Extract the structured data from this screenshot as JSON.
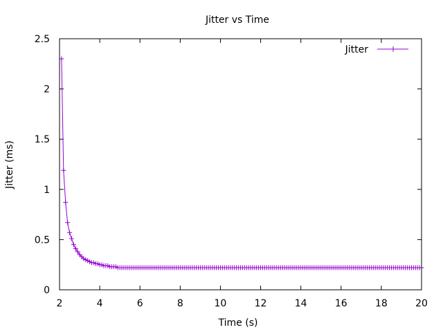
{
  "chart_data": {
    "type": "line",
    "title": "Jitter vs Time",
    "xlabel": "Time (s)",
    "ylabel": "Jitter (ms)",
    "xlim": [
      2,
      20
    ],
    "ylim": [
      0,
      2.5
    ],
    "xticks": [
      2,
      4,
      6,
      8,
      10,
      12,
      14,
      16,
      18,
      20
    ],
    "yticks": [
      0,
      0.5,
      1,
      1.5,
      2,
      2.5
    ],
    "xtick_labels": [
      "2",
      "4",
      "6",
      "8",
      "10",
      "12",
      "14",
      "16",
      "18",
      "20"
    ],
    "ytick_labels": [
      "0",
      "0.5",
      "1",
      "1.5",
      "2",
      "2.5"
    ],
    "grid": false,
    "legend_position": "top-right",
    "series": [
      {
        "name": "Jitter",
        "color": "#9400d3",
        "marker": "plus",
        "x": [
          2.1,
          2.2,
          2.3,
          2.4,
          2.5,
          2.6,
          2.7,
          2.8,
          2.9,
          3.0,
          3.1,
          3.2,
          3.3,
          3.4,
          3.5,
          3.6,
          3.7,
          3.8,
          3.9,
          4.0,
          4.1,
          4.2,
          4.3,
          4.4,
          4.5,
          4.6,
          4.7,
          4.8,
          4.9,
          5.0,
          5.1,
          5.2,
          5.3,
          5.4,
          5.5,
          5.6,
          5.7,
          5.8,
          5.9,
          6.0,
          6.1,
          6.2,
          6.3,
          6.4,
          6.5,
          6.6,
          6.7,
          6.8,
          6.9,
          7.0,
          7.1,
          7.2,
          7.3,
          7.4,
          7.5,
          7.6,
          7.7,
          7.8,
          7.9,
          8.0,
          8.1,
          8.2,
          8.3,
          8.4,
          8.5,
          8.6,
          8.7,
          8.8,
          8.9,
          9.0,
          9.1,
          9.2,
          9.3,
          9.4,
          9.5,
          9.6,
          9.7,
          9.8,
          9.9,
          10.0,
          10.1,
          10.2,
          10.3,
          10.4,
          10.5,
          10.6,
          10.7,
          10.8,
          10.9,
          11.0,
          11.1,
          11.2,
          11.3,
          11.4,
          11.5,
          11.6,
          11.7,
          11.8,
          11.9,
          12.0,
          12.1,
          12.2,
          12.3,
          12.4,
          12.5,
          12.6,
          12.7,
          12.8,
          12.9,
          13.0,
          13.1,
          13.2,
          13.3,
          13.4,
          13.5,
          13.6,
          13.7,
          13.8,
          13.9,
          14.0,
          14.1,
          14.2,
          14.3,
          14.4,
          14.5,
          14.6,
          14.7,
          14.8,
          14.9,
          15.0,
          15.1,
          15.2,
          15.3,
          15.4,
          15.5,
          15.6,
          15.7,
          15.8,
          15.9,
          16.0,
          16.1,
          16.2,
          16.3,
          16.4,
          16.5,
          16.6,
          16.7,
          16.8,
          16.9,
          17.0,
          17.1,
          17.2,
          17.3,
          17.4,
          17.5,
          17.6,
          17.7,
          17.8,
          17.9,
          18.0,
          18.1,
          18.2,
          18.3,
          18.4,
          18.5,
          18.6,
          18.7,
          18.8,
          18.9,
          19.0,
          19.1,
          19.2,
          19.3,
          19.4,
          19.5,
          19.6,
          19.7,
          19.8,
          19.9,
          20.0
        ],
        "y": [
          2.3,
          1.19,
          0.87,
          0.67,
          0.57,
          0.51,
          0.45,
          0.41,
          0.38,
          0.35,
          0.33,
          0.31,
          0.3,
          0.29,
          0.28,
          0.27,
          0.27,
          0.26,
          0.26,
          0.25,
          0.25,
          0.24,
          0.24,
          0.24,
          0.23,
          0.23,
          0.23,
          0.23,
          0.22,
          0.22,
          0.22,
          0.22,
          0.22,
          0.22,
          0.22,
          0.22,
          0.22,
          0.22,
          0.22,
          0.22,
          0.22,
          0.22,
          0.22,
          0.22,
          0.22,
          0.22,
          0.22,
          0.22,
          0.22,
          0.22,
          0.22,
          0.22,
          0.22,
          0.22,
          0.22,
          0.22,
          0.22,
          0.22,
          0.22,
          0.22,
          0.22,
          0.22,
          0.22,
          0.22,
          0.22,
          0.22,
          0.22,
          0.22,
          0.22,
          0.22,
          0.22,
          0.22,
          0.22,
          0.22,
          0.22,
          0.22,
          0.22,
          0.22,
          0.22,
          0.22,
          0.22,
          0.22,
          0.22,
          0.22,
          0.22,
          0.22,
          0.22,
          0.22,
          0.22,
          0.22,
          0.22,
          0.22,
          0.22,
          0.22,
          0.22,
          0.22,
          0.22,
          0.22,
          0.22,
          0.22,
          0.22,
          0.22,
          0.22,
          0.22,
          0.22,
          0.22,
          0.22,
          0.22,
          0.22,
          0.22,
          0.22,
          0.22,
          0.22,
          0.22,
          0.22,
          0.22,
          0.22,
          0.22,
          0.22,
          0.22,
          0.22,
          0.22,
          0.22,
          0.22,
          0.22,
          0.22,
          0.22,
          0.22,
          0.22,
          0.22,
          0.22,
          0.22,
          0.22,
          0.22,
          0.22,
          0.22,
          0.22,
          0.22,
          0.22,
          0.22,
          0.22,
          0.22,
          0.22,
          0.22,
          0.22,
          0.22,
          0.22,
          0.22,
          0.22,
          0.22,
          0.22,
          0.22,
          0.22,
          0.22,
          0.22,
          0.22,
          0.22,
          0.22,
          0.22,
          0.22,
          0.22,
          0.22,
          0.22,
          0.22,
          0.22,
          0.22,
          0.22,
          0.22,
          0.22,
          0.22,
          0.22,
          0.22,
          0.22,
          0.22,
          0.22,
          0.22,
          0.22,
          0.22,
          0.22,
          0.22
        ]
      }
    ]
  }
}
